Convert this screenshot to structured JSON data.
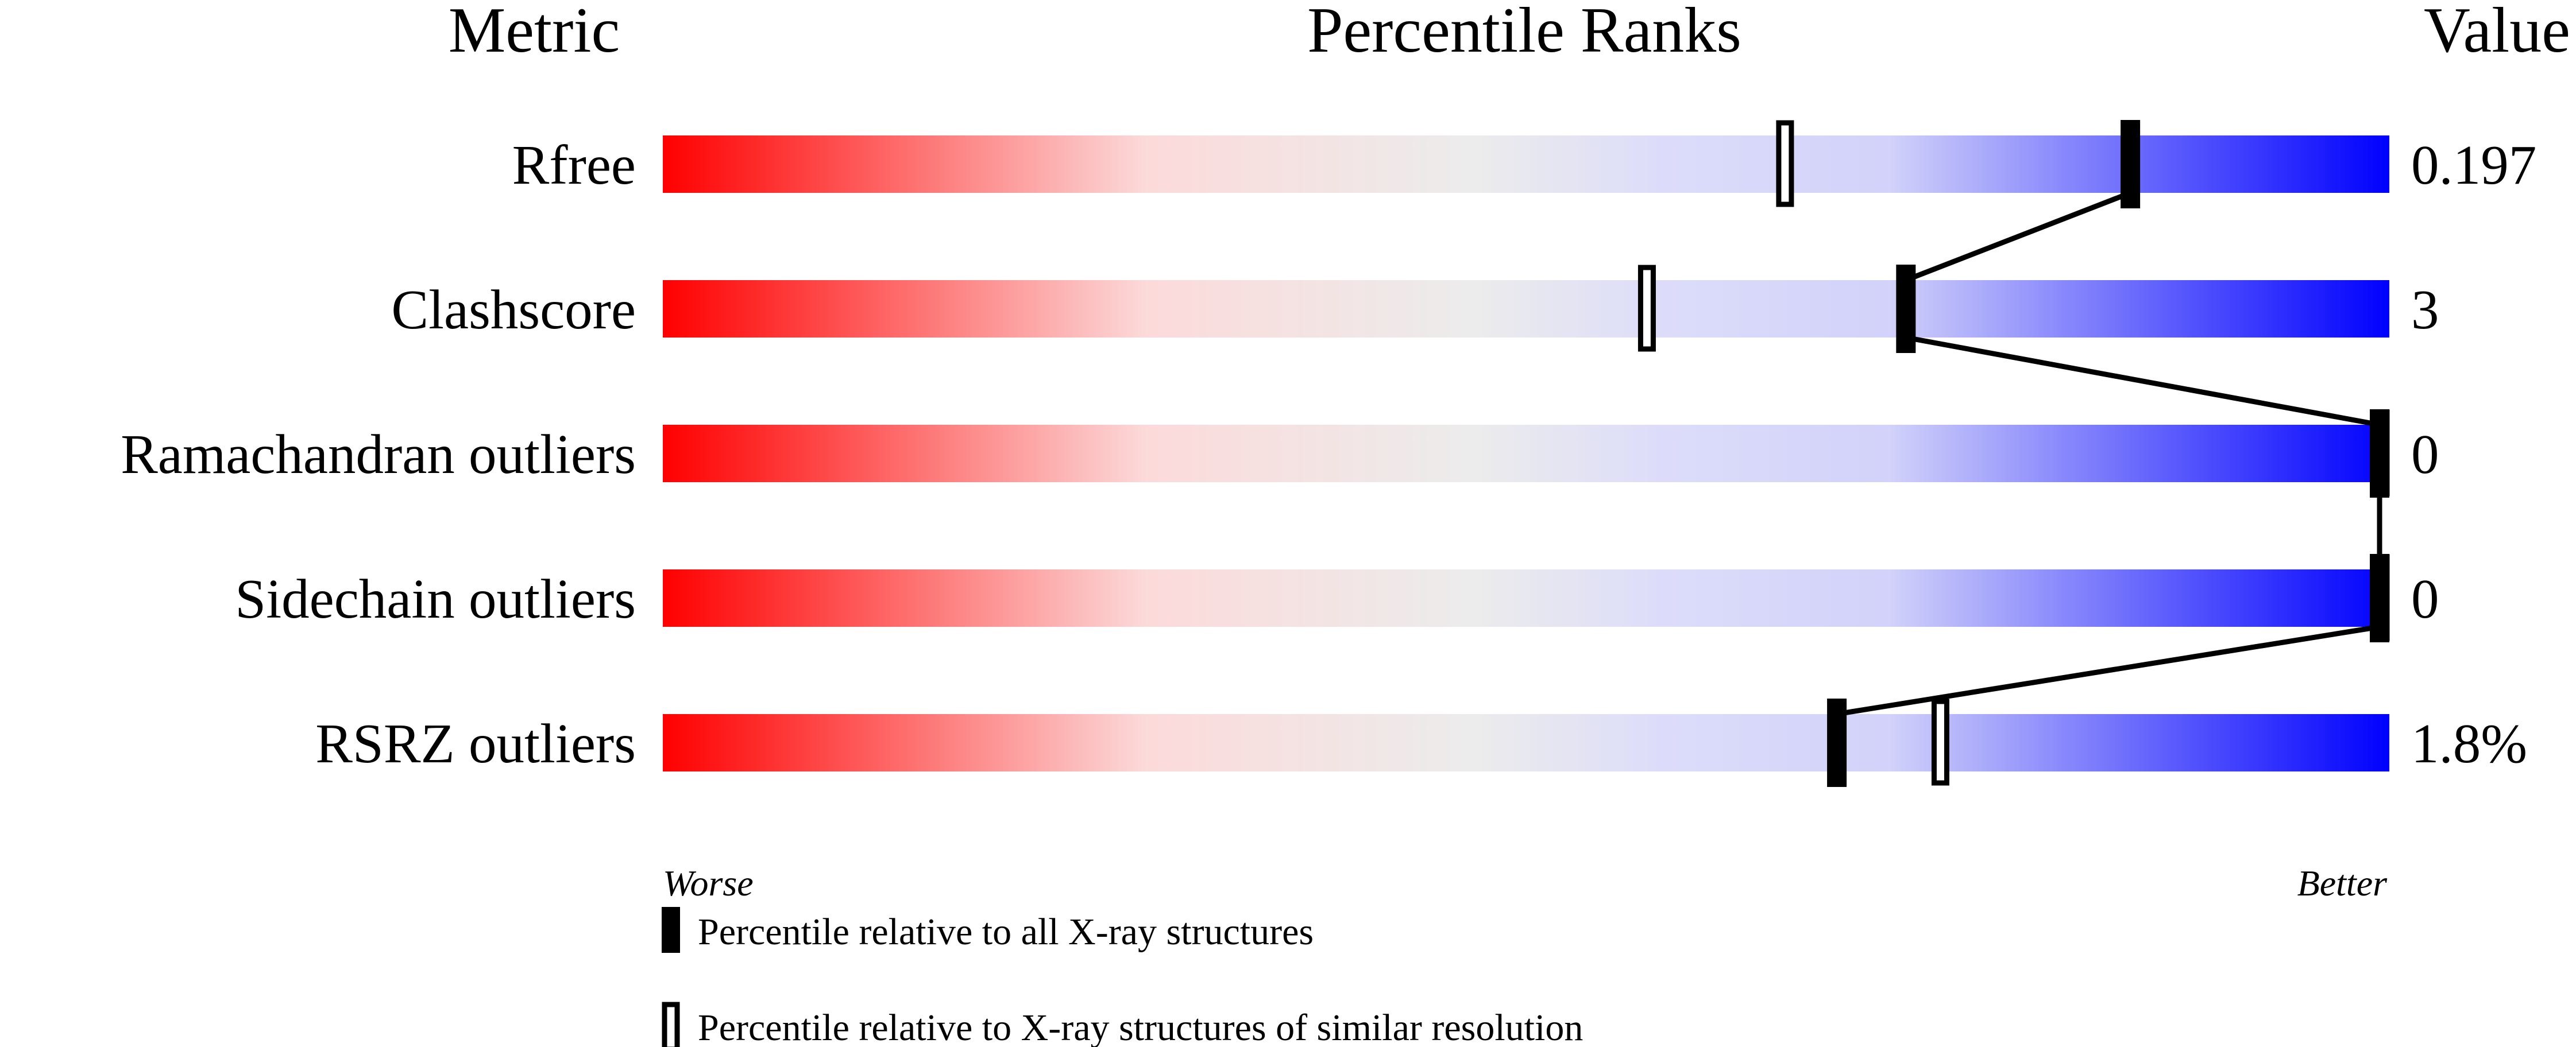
{
  "chart_data": {
    "type": "percentile-slider",
    "headers": {
      "metric": "Metric",
      "ranks": "Percentile Ranks",
      "value": "Value"
    },
    "xlim": [
      0,
      100
    ],
    "metrics": [
      {
        "label": "Rfree",
        "value": "0.197",
        "percentile_all": 85,
        "percentile_similar": 65
      },
      {
        "label": "Clashscore",
        "value": "3",
        "percentile_all": 72,
        "percentile_similar": 57
      },
      {
        "label": "Ramachandran outliers",
        "value": "0",
        "percentile_all": 100,
        "percentile_similar": 100
      },
      {
        "label": "Sidechain outliers",
        "value": "0",
        "percentile_all": 100,
        "percentile_similar": 100
      },
      {
        "label": "RSRZ outliers",
        "value": "1.8%",
        "percentile_all": 68,
        "percentile_similar": 74
      }
    ],
    "axis_labels": {
      "left": "Worse",
      "right": "Better"
    },
    "legend": {
      "filled": "Percentile relative to all X-ray structures",
      "open": "Percentile relative to X-ray structures of similar resolution"
    },
    "colors": {
      "worse": "#ff0000",
      "middle": "#ececec",
      "light_blue": "#d6d6fa",
      "better": "#0000ff",
      "marker": "#000000"
    }
  }
}
